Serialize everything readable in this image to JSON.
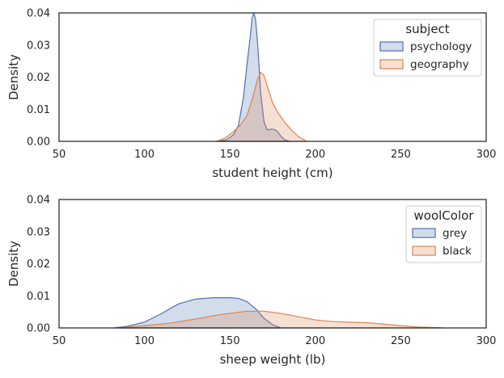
{
  "chart_data": [
    {
      "type": "area",
      "xlabel": "student height (cm)",
      "ylabel": "Density",
      "xlim": [
        50,
        300
      ],
      "ylim": [
        0,
        0.04
      ],
      "xticks": [
        "50",
        "100",
        "150",
        "200",
        "250",
        "300"
      ],
      "yticks": [
        "0.00",
        "0.01",
        "0.02",
        "0.03",
        "0.04"
      ],
      "grid": false,
      "legend": {
        "title": "subject",
        "placement": "top-right"
      },
      "series": [
        {
          "name": "psychology",
          "color": "#4c72b0",
          "x": [
            143,
            148,
            152,
            155,
            158,
            160,
            162,
            163,
            164,
            165,
            166,
            167,
            168,
            170,
            172,
            174,
            176,
            178,
            180,
            182,
            185
          ],
          "y": [
            0,
            0.0005,
            0.002,
            0.005,
            0.014,
            0.024,
            0.033,
            0.0385,
            0.04,
            0.038,
            0.032,
            0.024,
            0.015,
            0.006,
            0.0035,
            0.0038,
            0.0037,
            0.003,
            0.0015,
            0.0005,
            0
          ]
        },
        {
          "name": "geography",
          "color": "#dd8452",
          "x": [
            142,
            147,
            152,
            156,
            160,
            163,
            166,
            168,
            170,
            172,
            175,
            178,
            182,
            186,
            190,
            195
          ],
          "y": [
            0,
            0.001,
            0.003,
            0.005,
            0.008,
            0.013,
            0.019,
            0.0215,
            0.0205,
            0.017,
            0.012,
            0.009,
            0.006,
            0.0035,
            0.0015,
            0
          ]
        }
      ]
    },
    {
      "type": "area",
      "xlabel": "sheep weight (lb)",
      "ylabel": "Density",
      "xlim": [
        50,
        300
      ],
      "ylim": [
        0,
        0.04
      ],
      "xticks": [
        "50",
        "100",
        "150",
        "200",
        "250",
        "300"
      ],
      "yticks": [
        "0.00",
        "0.01",
        "0.02",
        "0.03",
        "0.04"
      ],
      "grid": false,
      "legend": {
        "title": "woolColor",
        "placement": "top-right"
      },
      "series": [
        {
          "name": "grey",
          "color": "#4c72b0",
          "x": [
            82,
            90,
            100,
            110,
            120,
            130,
            140,
            150,
            155,
            160,
            165,
            170,
            175,
            180
          ],
          "y": [
            0,
            0.0005,
            0.0018,
            0.0045,
            0.0075,
            0.009,
            0.0094,
            0.0094,
            0.0092,
            0.0082,
            0.006,
            0.003,
            0.001,
            0
          ]
        },
        {
          "name": "black",
          "color": "#dd8452",
          "x": [
            85,
            100,
            115,
            130,
            145,
            160,
            170,
            180,
            190,
            200,
            210,
            220,
            230,
            240,
            250,
            260,
            275
          ],
          "y": [
            0,
            0.0007,
            0.0015,
            0.0028,
            0.0042,
            0.0052,
            0.0052,
            0.0045,
            0.0035,
            0.0025,
            0.002,
            0.0018,
            0.0016,
            0.0012,
            0.0007,
            0.0003,
            0
          ]
        }
      ]
    }
  ]
}
